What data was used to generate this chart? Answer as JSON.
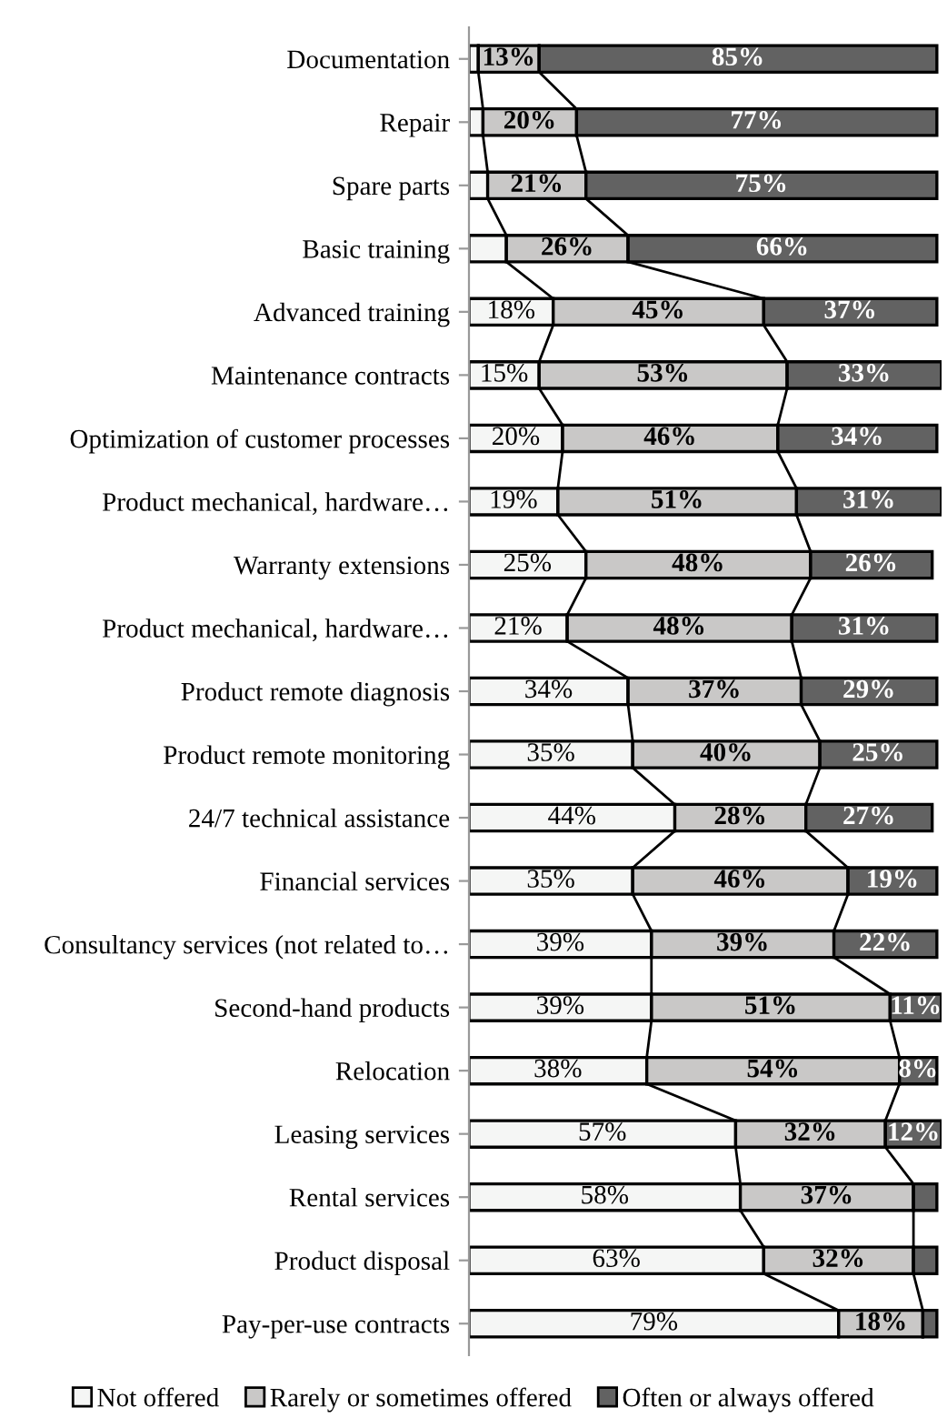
{
  "chart_data": {
    "type": "bar",
    "orientation": "horizontal",
    "stacked": true,
    "categories": [
      "Documentation",
      "Repair",
      "Spare parts",
      "Basic training",
      "Advanced training",
      "Maintenance contracts",
      "Optimization of customer processes",
      "Product mechanical, hardware…",
      "Warranty extensions",
      "Product mechanical, hardware…",
      "Product remote diagnosis",
      "Product remote monitoring",
      "24/7 technical assistance",
      "Financial services",
      "Consultancy services (not related to…",
      "Second-hand products",
      "Relocation",
      "Leasing services",
      "Rental services",
      "Product disposal",
      "Pay-per-use contracts"
    ],
    "series": [
      {
        "name": "Not offered",
        "color": "#f5f6f5",
        "values": [
          2,
          3,
          4,
          8,
          18,
          15,
          20,
          19,
          25,
          21,
          34,
          35,
          44,
          35,
          39,
          39,
          38,
          57,
          58,
          63,
          79
        ],
        "value_labels": [
          null,
          null,
          null,
          null,
          "18%",
          "15%",
          "20%",
          "19%",
          "25%",
          "21%",
          "34%",
          "35%",
          "44%",
          "35%",
          "39%",
          "39%",
          "38%",
          "57%",
          "58%",
          "63%",
          "79%"
        ]
      },
      {
        "name": "Rarely or sometimes offered",
        "color": "#c9c8c7",
        "values": [
          13,
          20,
          21,
          26,
          45,
          53,
          46,
          51,
          48,
          48,
          37,
          40,
          28,
          46,
          39,
          51,
          54,
          32,
          37,
          32,
          18
        ],
        "value_labels": [
          "13%",
          "20%",
          "21%",
          "26%",
          "45%",
          "53%",
          "46%",
          "51%",
          "48%",
          "48%",
          "37%",
          "40%",
          "28%",
          "46%",
          "39%",
          "51%",
          "54%",
          "32%",
          "37%",
          "32%",
          "18%"
        ]
      },
      {
        "name": "Often or always offered",
        "color": "#626262",
        "values": [
          85,
          77,
          75,
          66,
          37,
          33,
          34,
          31,
          26,
          31,
          29,
          25,
          27,
          19,
          22,
          11,
          8,
          12,
          5,
          5,
          3
        ],
        "value_labels": [
          "85%",
          "77%",
          "75%",
          "66%",
          "37%",
          "33%",
          "34%",
          "31%",
          "26%",
          "31%",
          "29%",
          "25%",
          "27%",
          "19%",
          "22%",
          "11%",
          "8%",
          "12%",
          null,
          null,
          null
        ]
      }
    ],
    "xlim": [
      0,
      101
    ],
    "tick_labels": "y",
    "legend": "bottom",
    "grid": false
  }
}
